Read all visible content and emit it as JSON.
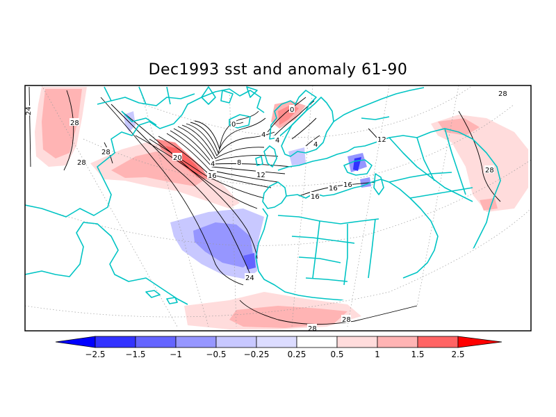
{
  "title": "Dec1993 sst and anomaly 61-90",
  "colorbar": {
    "labels": [
      "−2.5",
      "−1.5",
      "−1",
      "−0.5",
      "−0.25",
      "0.25",
      "0.5",
      "1",
      "1.5",
      "2.5"
    ],
    "colors": [
      "#0000ff",
      "#3232ff",
      "#6464ff",
      "#9696ff",
      "#c8c8ff",
      "#dcdcff",
      "#ffffff",
      "#ffdcdc",
      "#ffb4b4",
      "#ff8c8c",
      "#ff6464",
      "#ff3232",
      "#ff0000"
    ]
  },
  "contour_labels": [
    "24",
    "28",
    "28",
    "28",
    "20",
    "16",
    "4",
    "8",
    "12",
    "0",
    "4",
    "0",
    "4",
    "4",
    "12",
    "16",
    "16",
    "16",
    "24",
    "28",
    "28",
    "28",
    "28"
  ]
}
